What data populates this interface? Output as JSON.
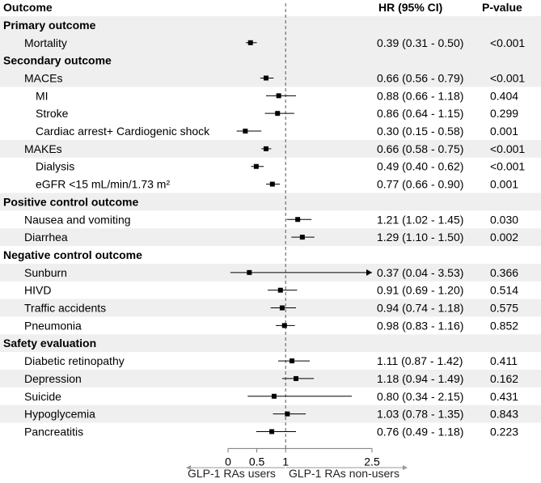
{
  "chart_data": {
    "type": "forest",
    "columns": {
      "outcome": "Outcome",
      "hr": "HR (95% CI)",
      "p": "P-value"
    },
    "reference_line": 1,
    "x_ticks": [
      "0",
      "0.5",
      "1",
      "2.5"
    ],
    "x_tick_values": [
      0,
      0.5,
      1,
      2.5
    ],
    "xlim": [
      0,
      2.5
    ],
    "footer_left": "GLP-1 RAs users",
    "footer_right": "GLP-1 RAs non-users",
    "colors": {
      "shade": "#efefef",
      "point": "#000000",
      "refline": "#555555"
    },
    "rows": [
      {
        "section": true,
        "label": "Primary outcome",
        "shaded": true
      },
      {
        "label": "Mortality",
        "indent": 1,
        "hr": 0.39,
        "lo": 0.31,
        "hi": 0.5,
        "hr_text": "0.39 (0.31 - 0.50)",
        "p": "<0.001",
        "shaded": true
      },
      {
        "section": true,
        "label": "Secondary outcome",
        "shaded": true
      },
      {
        "label": "MACEs",
        "indent": 1,
        "hr": 0.66,
        "lo": 0.56,
        "hi": 0.79,
        "hr_text": "0.66 (0.56 - 0.79)",
        "p": "<0.001",
        "shaded": true
      },
      {
        "label": "MI",
        "indent": 2,
        "hr": 0.88,
        "lo": 0.66,
        "hi": 1.18,
        "hr_text": "0.88 (0.66 - 1.18)",
        "p": "0.404",
        "shaded": false
      },
      {
        "label": "Stroke",
        "indent": 2,
        "hr": 0.86,
        "lo": 0.64,
        "hi": 1.15,
        "hr_text": "0.86 (0.64 - 1.15)",
        "p": "0.299",
        "shaded": false
      },
      {
        "label": "Cardiac arrest+ Cardiogenic shock",
        "indent": 2,
        "hr": 0.3,
        "lo": 0.15,
        "hi": 0.58,
        "hr_text": "0.30 (0.15 - 0.58)",
        "p": "0.001",
        "shaded": false
      },
      {
        "label": "MAKEs",
        "indent": 1,
        "hr": 0.66,
        "lo": 0.58,
        "hi": 0.75,
        "hr_text": "0.66 (0.58 - 0.75)",
        "p": "<0.001",
        "shaded": true
      },
      {
        "label": "Dialysis",
        "indent": 2,
        "hr": 0.49,
        "lo": 0.4,
        "hi": 0.62,
        "hr_text": "0.49 (0.40 - 0.62)",
        "p": "<0.001",
        "shaded": false
      },
      {
        "label": "eGFR <15 mL/min/1.73 m²",
        "indent": 2,
        "hr": 0.77,
        "lo": 0.66,
        "hi": 0.9,
        "hr_text": "0.77 (0.66 - 0.90)",
        "p": "0.001",
        "shaded": false
      },
      {
        "section": true,
        "label": "Positive control outcome",
        "shaded": true
      },
      {
        "label": "Nausea and vomiting",
        "indent": 1,
        "hr": 1.21,
        "lo": 1.02,
        "hi": 1.45,
        "hr_text": "1.21 (1.02 - 1.45)",
        "p": "0.030",
        "shaded": false
      },
      {
        "label": "Diarrhea",
        "indent": 1,
        "hr": 1.29,
        "lo": 1.1,
        "hi": 1.5,
        "hr_text": "1.29 (1.10 - 1.50)",
        "p": "0.002",
        "shaded": true
      },
      {
        "section": true,
        "label": "Negative control outcome",
        "shaded": false
      },
      {
        "label": "Sunburn",
        "indent": 1,
        "hr": 0.37,
        "lo": 0.04,
        "hi": 3.53,
        "arrow": true,
        "hr_text": "0.37 (0.04 - 3.53)",
        "p": "0.366",
        "shaded": true
      },
      {
        "label": "HIVD",
        "indent": 1,
        "hr": 0.91,
        "lo": 0.69,
        "hi": 1.2,
        "hr_text": "0.91 (0.69 - 1.20)",
        "p": "0.514",
        "shaded": false
      },
      {
        "label": "Traffic accidents",
        "indent": 1,
        "hr": 0.94,
        "lo": 0.74,
        "hi": 1.18,
        "hr_text": "0.94 (0.74 - 1.18)",
        "p": "0.575",
        "shaded": true
      },
      {
        "label": "Pneumonia",
        "indent": 1,
        "hr": 0.98,
        "lo": 0.83,
        "hi": 1.16,
        "hr_text": "0.98 (0.83 - 1.16)",
        "p": "0.852",
        "shaded": false
      },
      {
        "section": true,
        "label": "Safety evaluation",
        "shaded": true
      },
      {
        "label": "Diabetic retinopathy",
        "indent": 1,
        "hr": 1.11,
        "lo": 0.87,
        "hi": 1.42,
        "hr_text": "1.11 (0.87 - 1.42)",
        "p": "0.411",
        "shaded": false
      },
      {
        "label": "Depression",
        "indent": 1,
        "hr": 1.18,
        "lo": 0.94,
        "hi": 1.49,
        "hr_text": "1.18 (0.94 - 1.49)",
        "p": "0.162",
        "shaded": true
      },
      {
        "label": "Suicide",
        "indent": 1,
        "hr": 0.8,
        "lo": 0.34,
        "hi": 2.15,
        "hr_text": "0.80 (0.34 - 2.15)",
        "p": "0.431",
        "shaded": false
      },
      {
        "label": "Hypoglycemia",
        "indent": 1,
        "hr": 1.03,
        "lo": 0.78,
        "hi": 1.35,
        "hr_text": "1.03 (0.78 - 1.35)",
        "p": "0.843",
        "shaded": true
      },
      {
        "label": "Pancreatitis",
        "indent": 1,
        "hr": 0.76,
        "lo": 0.49,
        "hi": 1.18,
        "hr_text": "0.76 (0.49 - 1.18)",
        "p": "0.223",
        "shaded": false
      }
    ]
  }
}
